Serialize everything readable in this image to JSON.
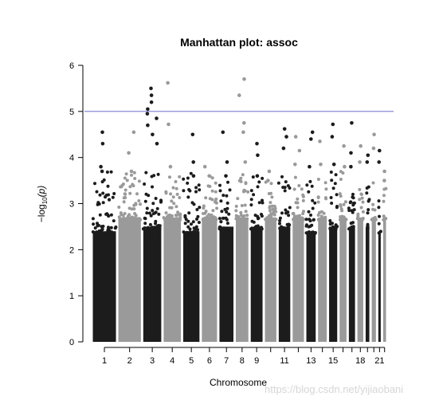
{
  "chart_data": {
    "type": "scatter",
    "title": "Manhattan plot: assoc",
    "xlabel": "Chromosome",
    "ylabel": "−log10(p)",
    "ylabel_main": "−log",
    "ylabel_sub": "10",
    "ylabel_paren": "(p)",
    "ylim": [
      0,
      6
    ],
    "yticks": [
      0,
      1,
      2,
      3,
      4,
      5,
      6
    ],
    "threshold": 5,
    "grid": false,
    "legend": "none",
    "colors": {
      "odd": "#1c1c1c",
      "even": "#9a9a9a",
      "threshold": "#7b7bd0"
    },
    "x_tick_labels": [
      "1",
      "2",
      "3",
      "4",
      "5",
      "6",
      "7",
      "8",
      "9",
      "11",
      "13",
      "15",
      "18",
      "21"
    ],
    "chromosomes": [
      {
        "chr": 1,
        "x_range": [
          0,
          248
        ],
        "bulk_top": 2.5,
        "max": 4.55,
        "peaks": [
          4.55,
          4.3,
          3.8,
          3.7
        ]
      },
      {
        "chr": 2,
        "x_range": [
          248,
          490
        ],
        "bulk_top": 2.8,
        "max": 4.55,
        "peaks": [
          4.55,
          4.1,
          3.7
        ]
      },
      {
        "chr": 3,
        "x_range": [
          490,
          688
        ],
        "bulk_top": 2.6,
        "max": 5.5,
        "peaks": [
          5.5,
          5.35,
          5.2,
          5.05,
          4.95,
          4.85,
          4.7,
          4.5,
          4.3
        ]
      },
      {
        "chr": 4,
        "x_range": [
          688,
          878
        ],
        "bulk_top": 2.8,
        "max": 5.62,
        "peaks": [
          5.62,
          4.72,
          3.8
        ]
      },
      {
        "chr": 5,
        "x_range": [
          878,
          1059
        ],
        "bulk_top": 2.5,
        "max": 4.5,
        "peaks": [
          4.5,
          3.9,
          3.6
        ]
      },
      {
        "chr": 6,
        "x_range": [
          1059,
          1230
        ],
        "bulk_top": 2.8,
        "max": 3.8,
        "peaks": [
          3.8,
          3.6
        ]
      },
      {
        "chr": 7,
        "x_range": [
          1230,
          1389
        ],
        "bulk_top": 2.6,
        "max": 4.55,
        "peaks": [
          4.55,
          3.9,
          3.6
        ]
      },
      {
        "chr": 8,
        "x_range": [
          1389,
          1534
        ],
        "bulk_top": 2.8,
        "max": 5.7,
        "peaks": [
          5.7,
          5.35,
          4.75,
          4.55,
          3.9
        ]
      },
      {
        "chr": 9,
        "x_range": [
          1534,
          1672
        ],
        "bulk_top": 2.6,
        "max": 4.3,
        "peaks": [
          4.3,
          4.05,
          3.6
        ]
      },
      {
        "chr": 10,
        "x_range": [
          1672,
          1806
        ],
        "bulk_top": 2.8,
        "max": 3.7,
        "peaks": [
          3.7,
          3.5
        ]
      },
      {
        "chr": 11,
        "x_range": [
          1806,
          1941
        ],
        "bulk_top": 2.6,
        "max": 4.62,
        "peaks": [
          4.62,
          4.45,
          4.2
        ]
      },
      {
        "chr": 12,
        "x_range": [
          1941,
          2074
        ],
        "bulk_top": 2.8,
        "max": 4.45,
        "peaks": [
          4.45,
          4.15,
          3.85
        ]
      },
      {
        "chr": 13,
        "x_range": [
          2074,
          2188
        ],
        "bulk_top": 2.5,
        "max": 4.55,
        "peaks": [
          4.55,
          4.4,
          3.8
        ]
      },
      {
        "chr": 14,
        "x_range": [
          2188,
          2295
        ],
        "bulk_top": 2.8,
        "max": 4.35,
        "peaks": [
          4.35,
          3.85
        ]
      },
      {
        "chr": 15,
        "x_range": [
          2295,
          2397
        ],
        "bulk_top": 2.6,
        "max": 4.72,
        "peaks": [
          4.72,
          4.45,
          3.85
        ]
      },
      {
        "chr": 16,
        "x_range": [
          2397,
          2487
        ],
        "bulk_top": 2.8,
        "max": 4.25,
        "peaks": [
          4.25,
          3.8
        ]
      },
      {
        "chr": 17,
        "x_range": [
          2487,
          2570
        ],
        "bulk_top": 2.6,
        "max": 4.75,
        "peaks": [
          4.75,
          4.1,
          3.8
        ]
      },
      {
        "chr": 18,
        "x_range": [
          2570,
          2650
        ],
        "bulk_top": 2.8,
        "max": 4.25,
        "peaks": [
          4.25,
          3.9
        ]
      },
      {
        "chr": 19,
        "x_range": [
          2650,
          2709
        ],
        "bulk_top": 2.6,
        "max": 4.05,
        "peaks": [
          4.05,
          3.9
        ]
      },
      {
        "chr": 20,
        "x_range": [
          2709,
          2773
        ],
        "bulk_top": 2.8,
        "max": 4.5,
        "peaks": [
          4.5,
          4.2
        ]
      },
      {
        "chr": 21,
        "x_range": [
          2773,
          2820
        ],
        "bulk_top": 2.5,
        "max": 4.15,
        "peaks": [
          4.15,
          3.9
        ]
      },
      {
        "chr": 22,
        "x_range": [
          2820,
          2871
        ],
        "bulk_top": 2.8,
        "max": 3.7,
        "peaks": [
          3.7,
          3.5
        ]
      }
    ]
  },
  "watermark": "https://blog.csdn.net/yijiaobani"
}
